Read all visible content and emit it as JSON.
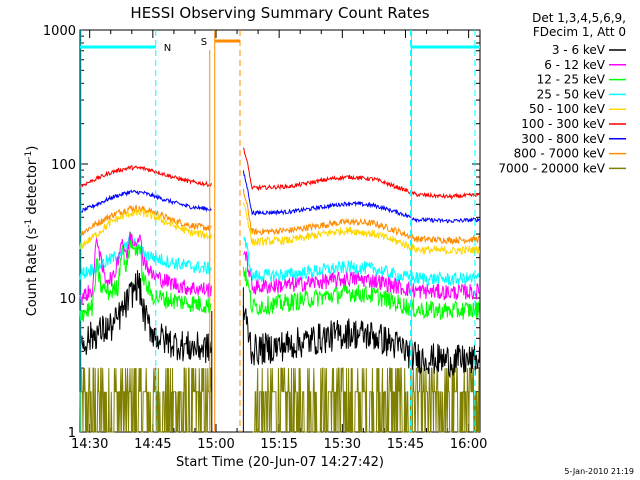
{
  "chart_data": {
    "type": "line",
    "title": "HESSI Observing Summary Count Rates",
    "xlabel": "Start Time (20-Jun-07 14:27:42)",
    "ylabel_parts": [
      "Count Rate (s",
      "-1",
      " detector",
      "-1",
      ")"
    ],
    "ylabel": "Count Rate (s-1 detector-1)",
    "yscale": "log",
    "ylim": [
      1,
      1000
    ],
    "xlim_minutes": [
      0,
      95
    ],
    "x_tick_labels": [
      "14:30",
      "14:45",
      "15:00",
      "15:15",
      "15:30",
      "15:45",
      "16:00"
    ],
    "x_tick_minutes": [
      2.3,
      17.3,
      32.3,
      47.3,
      62.3,
      77.3,
      92.3
    ],
    "y_tick_labels": [
      "1",
      "10",
      "100",
      "1000"
    ],
    "y_tick_values": [
      1,
      10,
      100,
      1000
    ],
    "legend": {
      "header": [
        "Det 1,3,4,5,6,9,",
        "FDecim 1, Att 0"
      ],
      "placement": "right"
    },
    "gap_minutes": [
      31.3,
      38.0
    ],
    "annotations": {
      "night_label": "N",
      "night_periods_minutes": [
        [
          0,
          18.0
        ],
        [
          78.5,
          95
        ]
      ],
      "saa_label": "S",
      "saa_period_minutes": [
        32.0,
        38.0
      ]
    },
    "series": [
      {
        "name": "3 - 6 keV",
        "color": "#000000",
        "points": [
          [
            0,
            4.5
          ],
          [
            4,
            5.5
          ],
          [
            8,
            6.2
          ],
          [
            11,
            9
          ],
          [
            13,
            12
          ],
          [
            14,
            13
          ],
          [
            15,
            8
          ],
          [
            16,
            6.5
          ],
          [
            18,
            5.2
          ],
          [
            22,
            4.6
          ],
          [
            26,
            4.3
          ],
          [
            31,
            4.2
          ],
          [
            40,
            4.0
          ],
          [
            50,
            4.5
          ],
          [
            60,
            5.2
          ],
          [
            64,
            5.5
          ],
          [
            70,
            5.2
          ],
          [
            76,
            4.3
          ],
          [
            80,
            3.6
          ],
          [
            88,
            3.4
          ],
          [
            95,
            3.4
          ]
        ]
      },
      {
        "name": "6 - 12 keV",
        "color": "#ff00ff",
        "points": [
          [
            0,
            10
          ],
          [
            3,
            11.5
          ],
          [
            4,
            30
          ],
          [
            5,
            18
          ],
          [
            6,
            14
          ],
          [
            8,
            14
          ],
          [
            10,
            28
          ],
          [
            11,
            20
          ],
          [
            12,
            30
          ],
          [
            13,
            26
          ],
          [
            14,
            30
          ],
          [
            15,
            20
          ],
          [
            17,
            15
          ],
          [
            20,
            13.5
          ],
          [
            25,
            12
          ],
          [
            31,
            11.5
          ],
          [
            40,
            12
          ],
          [
            50,
            12.5
          ],
          [
            60,
            13.5
          ],
          [
            64,
            14
          ],
          [
            70,
            13.5
          ],
          [
            76,
            12
          ],
          [
            80,
            11.3
          ],
          [
            88,
            11
          ],
          [
            95,
            11.2
          ]
        ]
      },
      {
        "name": "12 - 25 keV",
        "color": "#00ff00",
        "points": [
          [
            0,
            7.5
          ],
          [
            3,
            8.5
          ],
          [
            4,
            18
          ],
          [
            5,
            12
          ],
          [
            7,
            11
          ],
          [
            9,
            12
          ],
          [
            10,
            26
          ],
          [
            11,
            16
          ],
          [
            12,
            28
          ],
          [
            13,
            22
          ],
          [
            14,
            25
          ],
          [
            15,
            14
          ],
          [
            17,
            10.5
          ],
          [
            20,
            9.8
          ],
          [
            25,
            9.3
          ],
          [
            31,
            8.8
          ],
          [
            40,
            8.5
          ],
          [
            50,
            9.3
          ],
          [
            60,
            10.5
          ],
          [
            64,
            11
          ],
          [
            70,
            10.5
          ],
          [
            76,
            9
          ],
          [
            80,
            8.2
          ],
          [
            88,
            8.0
          ],
          [
            95,
            8.2
          ]
        ]
      },
      {
        "name": "25 - 50 keV",
        "color": "#00ffff",
        "points": [
          [
            0,
            15
          ],
          [
            4,
            17
          ],
          [
            8,
            20
          ],
          [
            10,
            22
          ],
          [
            12,
            27
          ],
          [
            14,
            23
          ],
          [
            16,
            21
          ],
          [
            20,
            19
          ],
          [
            25,
            17.5
          ],
          [
            31,
            16.5
          ],
          [
            40,
            14.5
          ],
          [
            50,
            15
          ],
          [
            60,
            16.5
          ],
          [
            64,
            17
          ],
          [
            70,
            16.5
          ],
          [
            76,
            14.5
          ],
          [
            80,
            14
          ],
          [
            88,
            13.8
          ],
          [
            95,
            14
          ]
        ]
      },
      {
        "name": "50 - 100 keV",
        "color": "#ffd700",
        "points": [
          [
            0,
            24
          ],
          [
            4,
            30
          ],
          [
            8,
            38
          ],
          [
            12,
            43
          ],
          [
            15,
            43
          ],
          [
            18,
            40
          ],
          [
            22,
            35
          ],
          [
            26,
            31
          ],
          [
            31,
            29
          ],
          [
            40,
            26
          ],
          [
            50,
            27
          ],
          [
            60,
            31
          ],
          [
            64,
            32
          ],
          [
            70,
            30
          ],
          [
            76,
            26
          ],
          [
            80,
            23
          ],
          [
            88,
            22.5
          ],
          [
            95,
            23
          ]
        ]
      },
      {
        "name": "100 - 300 keV",
        "color": "#ff0000",
        "points": [
          [
            0,
            68
          ],
          [
            4,
            78
          ],
          [
            8,
            88
          ],
          [
            12,
            94
          ],
          [
            15,
            93
          ],
          [
            18,
            88
          ],
          [
            22,
            80
          ],
          [
            26,
            74
          ],
          [
            31,
            70
          ],
          [
            40,
            66
          ],
          [
            50,
            68
          ],
          [
            60,
            78
          ],
          [
            64,
            80
          ],
          [
            70,
            77
          ],
          [
            76,
            66
          ],
          [
            80,
            59
          ],
          [
            88,
            57
          ],
          [
            95,
            59
          ]
        ]
      },
      {
        "name": "300 - 800 keV",
        "color": "#0000ff",
        "points": [
          [
            0,
            44
          ],
          [
            4,
            50
          ],
          [
            8,
            57
          ],
          [
            12,
            62
          ],
          [
            15,
            61
          ],
          [
            18,
            57
          ],
          [
            22,
            52
          ],
          [
            26,
            48
          ],
          [
            31,
            46
          ],
          [
            40,
            43
          ],
          [
            50,
            44
          ],
          [
            60,
            49
          ],
          [
            64,
            51
          ],
          [
            70,
            49
          ],
          [
            76,
            43
          ],
          [
            80,
            38.5
          ],
          [
            88,
            37.5
          ],
          [
            95,
            38.5
          ]
        ]
      },
      {
        "name": "800 - 7000 keV",
        "color": "#ff8c00",
        "points": [
          [
            0,
            30
          ],
          [
            4,
            36
          ],
          [
            8,
            42
          ],
          [
            12,
            47
          ],
          [
            15,
            46
          ],
          [
            18,
            43
          ],
          [
            22,
            38
          ],
          [
            26,
            35
          ],
          [
            31,
            33
          ],
          [
            40,
            31
          ],
          [
            50,
            32
          ],
          [
            60,
            36
          ],
          [
            64,
            37
          ],
          [
            70,
            36
          ],
          [
            76,
            31
          ],
          [
            80,
            27.5
          ],
          [
            88,
            27
          ],
          [
            95,
            27.5
          ]
        ]
      },
      {
        "name": "7000 - 20000 keV",
        "color": "#808000",
        "points": [
          [
            0,
            1.8
          ],
          [
            31,
            1.8
          ],
          [
            40,
            1.8
          ],
          [
            95,
            1.8
          ]
        ]
      }
    ]
  },
  "footer": {
    "timestamp": "5-Jan-2010 21:19"
  }
}
